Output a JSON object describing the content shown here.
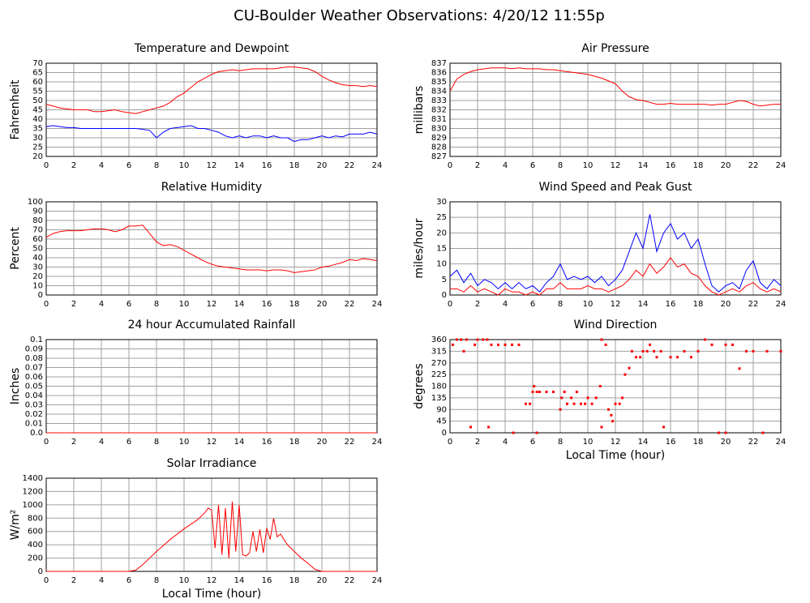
{
  "title": "CU-Boulder Weather Observations: 4/20/12 11:55p",
  "chart_data": [
    {
      "type": "line",
      "title": "Temperature and Dewpoint",
      "ylabel": "Fahrenheit",
      "xlim": [
        0,
        24
      ],
      "xticks": [
        0,
        2,
        4,
        6,
        8,
        10,
        12,
        14,
        16,
        18,
        20,
        22,
        24
      ],
      "ylim": [
        20,
        70
      ],
      "yticks": [
        20,
        25,
        30,
        35,
        40,
        45,
        50,
        55,
        60,
        65,
        70
      ],
      "grid": true,
      "series": [
        {
          "name": "Temperature",
          "color": "#ff0000",
          "x": [
            0,
            0.5,
            1,
            1.5,
            2,
            2.5,
            3,
            3.5,
            4,
            4.5,
            5,
            5.5,
            6,
            6.5,
            7,
            7.5,
            8,
            8.5,
            9,
            9.5,
            10,
            10.5,
            11,
            11.5,
            12,
            12.5,
            13,
            13.5,
            14,
            14.5,
            15,
            15.5,
            16,
            16.5,
            17,
            17.5,
            18,
            18.5,
            19,
            19.5,
            20,
            20.5,
            21,
            21.5,
            22,
            22.5,
            23,
            23.5,
            24
          ],
          "values": [
            48,
            47,
            46,
            45.5,
            45,
            45,
            45,
            44,
            44,
            44.5,
            45,
            44,
            43.5,
            43,
            44,
            45,
            46,
            47,
            49,
            52,
            54,
            57,
            60,
            62,
            64,
            65.5,
            66,
            66.5,
            66,
            66.5,
            67,
            67,
            67,
            67,
            67.5,
            68,
            68,
            67.5,
            67,
            65.5,
            63,
            61,
            59.5,
            58.5,
            58,
            58,
            57.5,
            58,
            57.5
          ]
        },
        {
          "name": "Dewpoint",
          "color": "#0000ff",
          "x": [
            0,
            0.5,
            1,
            1.5,
            2,
            2.5,
            3,
            3.5,
            4,
            4.5,
            5,
            5.5,
            6,
            6.5,
            7,
            7.5,
            8,
            8.5,
            9,
            9.5,
            10,
            10.5,
            11,
            11.5,
            12,
            12.5,
            13,
            13.5,
            14,
            14.5,
            15,
            15.5,
            16,
            16.5,
            17,
            17.5,
            18,
            18.5,
            19,
            19.5,
            20,
            20.5,
            21,
            21.5,
            22,
            22.5,
            23,
            23.5,
            24
          ],
          "values": [
            36,
            36.5,
            36,
            35.5,
            35.5,
            35,
            35,
            35,
            35,
            35,
            35,
            35,
            35,
            35,
            34.5,
            34,
            30,
            33,
            35,
            35.5,
            36,
            36.5,
            35,
            35,
            34,
            33,
            31,
            30,
            31,
            30,
            31,
            31,
            30,
            31,
            30,
            30,
            28,
            29,
            29,
            30,
            31,
            30,
            31,
            30.5,
            32,
            32,
            32,
            33,
            32
          ]
        }
      ]
    },
    {
      "type": "line",
      "title": "Air Pressure",
      "ylabel": "millibars",
      "xlim": [
        0,
        24
      ],
      "xticks": [
        0,
        2,
        4,
        6,
        8,
        10,
        12,
        14,
        16,
        18,
        20,
        22,
        24
      ],
      "ylim": [
        827,
        837
      ],
      "yticks": [
        827,
        828,
        829,
        830,
        831,
        832,
        833,
        834,
        835,
        836,
        837
      ],
      "grid": true,
      "series": [
        {
          "name": "Pressure",
          "color": "#ff0000",
          "x": [
            0,
            0.5,
            1,
            1.5,
            2,
            2.5,
            3,
            3.5,
            4,
            4.5,
            5,
            5.5,
            6,
            6.5,
            7,
            7.5,
            8,
            8.5,
            9,
            9.5,
            10,
            10.5,
            11,
            11.5,
            12,
            12.5,
            13,
            13.5,
            14,
            14.5,
            15,
            15.5,
            16,
            16.5,
            17,
            17.5,
            18,
            18.5,
            19,
            19.5,
            20,
            20.5,
            21,
            21.5,
            22,
            22.5,
            23,
            23.5,
            24
          ],
          "values": [
            834,
            835.3,
            835.8,
            836.1,
            836.3,
            836.4,
            836.5,
            836.5,
            836.5,
            836.4,
            836.5,
            836.4,
            836.4,
            836.4,
            836.3,
            836.3,
            836.2,
            836.1,
            836,
            835.9,
            835.8,
            835.6,
            835.4,
            835.1,
            834.8,
            834,
            833.4,
            833.1,
            833,
            832.8,
            832.6,
            832.6,
            832.7,
            832.6,
            832.6,
            832.6,
            832.6,
            832.6,
            832.5,
            832.6,
            832.6,
            832.8,
            833,
            832.9,
            832.6,
            832.4,
            832.5,
            832.6,
            832.6
          ]
        }
      ]
    },
    {
      "type": "line",
      "title": "Relative Humidity",
      "ylabel": "Percent",
      "xlim": [
        0,
        24
      ],
      "xticks": [
        0,
        2,
        4,
        6,
        8,
        10,
        12,
        14,
        16,
        18,
        20,
        22,
        24
      ],
      "ylim": [
        0,
        100
      ],
      "yticks": [
        0,
        10,
        20,
        30,
        40,
        50,
        60,
        70,
        80,
        90,
        100
      ],
      "grid": true,
      "series": [
        {
          "name": "Humidity",
          "color": "#ff0000",
          "x": [
            0,
            0.5,
            1,
            1.5,
            2,
            2.5,
            3,
            3.5,
            4,
            4.5,
            5,
            5.5,
            6,
            6.5,
            7,
            7.5,
            8,
            8.5,
            9,
            9.5,
            10,
            10.5,
            11,
            11.5,
            12,
            12.5,
            13,
            13.5,
            14,
            14.5,
            15,
            15.5,
            16,
            16.5,
            17,
            17.5,
            18,
            18.5,
            19,
            19.5,
            20,
            20.5,
            21,
            21.5,
            22,
            22.5,
            23,
            23.5,
            24
          ],
          "values": [
            62,
            66,
            68,
            69,
            69,
            69,
            70,
            71,
            71,
            70,
            68,
            70,
            74,
            74,
            75,
            66,
            57,
            53,
            54,
            52,
            48,
            44,
            40,
            36,
            33,
            31,
            30,
            29,
            28,
            27,
            27,
            27,
            26,
            27,
            27,
            26,
            24,
            25,
            26,
            27,
            30,
            31,
            33,
            35,
            38,
            37,
            39,
            38,
            37
          ]
        }
      ]
    },
    {
      "type": "line",
      "title": "Wind Speed and Peak Gust",
      "ylabel": "miles/hour",
      "xlim": [
        0,
        24
      ],
      "xticks": [
        0,
        2,
        4,
        6,
        8,
        10,
        12,
        14,
        16,
        18,
        20,
        22,
        24
      ],
      "ylim": [
        0,
        30
      ],
      "yticks": [
        0,
        5,
        10,
        15,
        20,
        25,
        30
      ],
      "grid": true,
      "series": [
        {
          "name": "Peak Gust",
          "color": "#0000ff",
          "x": [
            0,
            0.5,
            1,
            1.5,
            2,
            2.5,
            3,
            3.5,
            4,
            4.5,
            5,
            5.5,
            6,
            6.5,
            7,
            7.5,
            8,
            8.5,
            9,
            9.5,
            10,
            10.5,
            11,
            11.5,
            12,
            12.5,
            13,
            13.5,
            14,
            14.5,
            15,
            15.5,
            16,
            16.5,
            17,
            17.5,
            18,
            18.5,
            19,
            19.5,
            20,
            20.5,
            21,
            21.5,
            22,
            22.5,
            23,
            23.5,
            24
          ],
          "values": [
            6,
            8,
            4,
            7,
            3,
            5,
            4,
            2,
            4,
            2,
            4,
            2,
            3,
            1,
            4,
            6,
            10,
            5,
            6,
            5,
            6,
            4,
            6,
            3,
            5,
            8,
            14,
            20,
            15,
            26,
            14,
            20,
            23,
            18,
            20,
            15,
            18,
            10,
            3,
            1,
            3,
            4,
            2,
            8,
            11,
            4,
            2,
            5,
            3
          ]
        },
        {
          "name": "Wind Speed",
          "color": "#ff0000",
          "x": [
            0,
            0.5,
            1,
            1.5,
            2,
            2.5,
            3,
            3.5,
            4,
            4.5,
            5,
            5.5,
            6,
            6.5,
            7,
            7.5,
            8,
            8.5,
            9,
            9.5,
            10,
            10.5,
            11,
            11.5,
            12,
            12.5,
            13,
            13.5,
            14,
            14.5,
            15,
            15.5,
            16,
            16.5,
            17,
            17.5,
            18,
            18.5,
            19,
            19.5,
            20,
            20.5,
            21,
            21.5,
            22,
            22.5,
            23,
            23.5,
            24
          ],
          "values": [
            2,
            2,
            1,
            3,
            1,
            2,
            1,
            0,
            2,
            1,
            1,
            0,
            1,
            0,
            2,
            2,
            4,
            2,
            2,
            2,
            3,
            2,
            2,
            1,
            2,
            3,
            5,
            8,
            6,
            10,
            7,
            9,
            12,
            9,
            10,
            7,
            6,
            3,
            1,
            0,
            1,
            2,
            1,
            3,
            4,
            2,
            1,
            2,
            1
          ]
        }
      ]
    },
    {
      "type": "line",
      "title": "24 hour Accumulated Rainfall",
      "ylabel": "Inches",
      "xlim": [
        0,
        24
      ],
      "xticks": [
        0,
        2,
        4,
        6,
        8,
        10,
        12,
        14,
        16,
        18,
        20,
        22,
        24
      ],
      "ylim": [
        0,
        0.1
      ],
      "yticks": [
        {
          "value": 0,
          "label": "0.0"
        },
        0.01,
        0.02,
        0.03,
        0.04,
        0.05,
        0.06,
        0.07,
        0.08,
        0.09,
        0.1
      ],
      "grid": true,
      "series": [
        {
          "name": "Rainfall",
          "color": "#ff0000",
          "x": [
            0,
            24
          ],
          "values": [
            0,
            0
          ]
        }
      ]
    },
    {
      "type": "scatter",
      "title": "Wind Direction",
      "ylabel": "degrees",
      "xlabel": "Local Time (hour)",
      "xlim": [
        0,
        24
      ],
      "xticks": [
        0,
        2,
        4,
        6,
        8,
        10,
        12,
        14,
        16,
        18,
        20,
        22,
        24
      ],
      "ylim": [
        0,
        360
      ],
      "yticks": [
        0,
        45,
        90,
        135,
        180,
        225,
        270,
        315,
        360
      ],
      "grid": true,
      "series": [
        {
          "name": "Direction",
          "color": "#ff0000",
          "x": [
            0.2,
            0.5,
            0.8,
            1,
            1.2,
            1.5,
            1.8,
            2,
            2.4,
            2.7,
            2.8,
            3,
            3.5,
            4,
            4.5,
            4.6,
            5,
            5.5,
            5.8,
            6,
            6.1,
            6.3,
            6.3,
            6.5,
            7,
            7.5,
            8,
            8.1,
            8.3,
            8.5,
            8.8,
            9,
            9.2,
            9.5,
            9.8,
            10,
            10.3,
            10.6,
            10.9,
            11,
            11,
            11.3,
            11.5,
            11.7,
            11.8,
            12,
            12.3,
            12.5,
            12.7,
            13,
            13.2,
            13.5,
            13.8,
            14,
            14.3,
            14.5,
            14.8,
            15,
            15.3,
            15.5,
            16,
            16.5,
            17,
            17.5,
            18,
            18.5,
            19,
            19.5,
            20,
            20,
            20.5,
            21,
            21.5,
            22,
            22.7,
            23,
            24
          ],
          "values": [
            340,
            360,
            360,
            315,
            360,
            22,
            340,
            360,
            360,
            360,
            22,
            340,
            340,
            340,
            340,
            0,
            340,
            112,
            112,
            158,
            180,
            158,
            0,
            158,
            158,
            158,
            90,
            135,
            158,
            112,
            135,
            112,
            158,
            112,
            112,
            135,
            112,
            135,
            180,
            22,
            360,
            340,
            90,
            68,
            45,
            112,
            112,
            135,
            225,
            250,
            315,
            292,
            292,
            315,
            315,
            340,
            315,
            292,
            315,
            22,
            292,
            292,
            315,
            292,
            315,
            360,
            340,
            0,
            0,
            340,
            340,
            248,
            315,
            315,
            0,
            315,
            315
          ]
        }
      ]
    },
    {
      "type": "line",
      "title": "Solar Irradiance",
      "ylabel": "W/m²",
      "xlabel": "Local Time (hour)",
      "xlim": [
        0,
        24
      ],
      "xticks": [
        0,
        2,
        4,
        6,
        8,
        10,
        12,
        14,
        16,
        18,
        20,
        22,
        24
      ],
      "ylim": [
        0,
        1400
      ],
      "yticks": [
        0,
        200,
        400,
        600,
        800,
        1000,
        1200,
        1400
      ],
      "grid": true,
      "series": [
        {
          "name": "Irradiance",
          "color": "#ff0000",
          "x": [
            0,
            1,
            2,
            3,
            4,
            5,
            6,
            6.5,
            7,
            7.5,
            8,
            8.5,
            9,
            9.5,
            10,
            10.5,
            11,
            11.5,
            11.75,
            12,
            12.25,
            12.5,
            12.75,
            13,
            13.25,
            13.5,
            13.75,
            14,
            14.25,
            14.5,
            14.75,
            15,
            15.25,
            15.5,
            15.75,
            16,
            16.25,
            16.5,
            16.75,
            17,
            17.5,
            18,
            18.5,
            19,
            19.5,
            20,
            21,
            22,
            23,
            24
          ],
          "values": [
            0,
            0,
            0,
            0,
            0,
            0,
            0,
            20,
            100,
            200,
            300,
            390,
            480,
            560,
            640,
            710,
            780,
            880,
            950,
            920,
            350,
            1000,
            250,
            950,
            200,
            1050,
            300,
            1000,
            250,
            230,
            280,
            600,
            300,
            630,
            280,
            650,
            480,
            800,
            520,
            560,
            400,
            300,
            200,
            120,
            30,
            0,
            0,
            0,
            0,
            0
          ]
        }
      ]
    }
  ]
}
